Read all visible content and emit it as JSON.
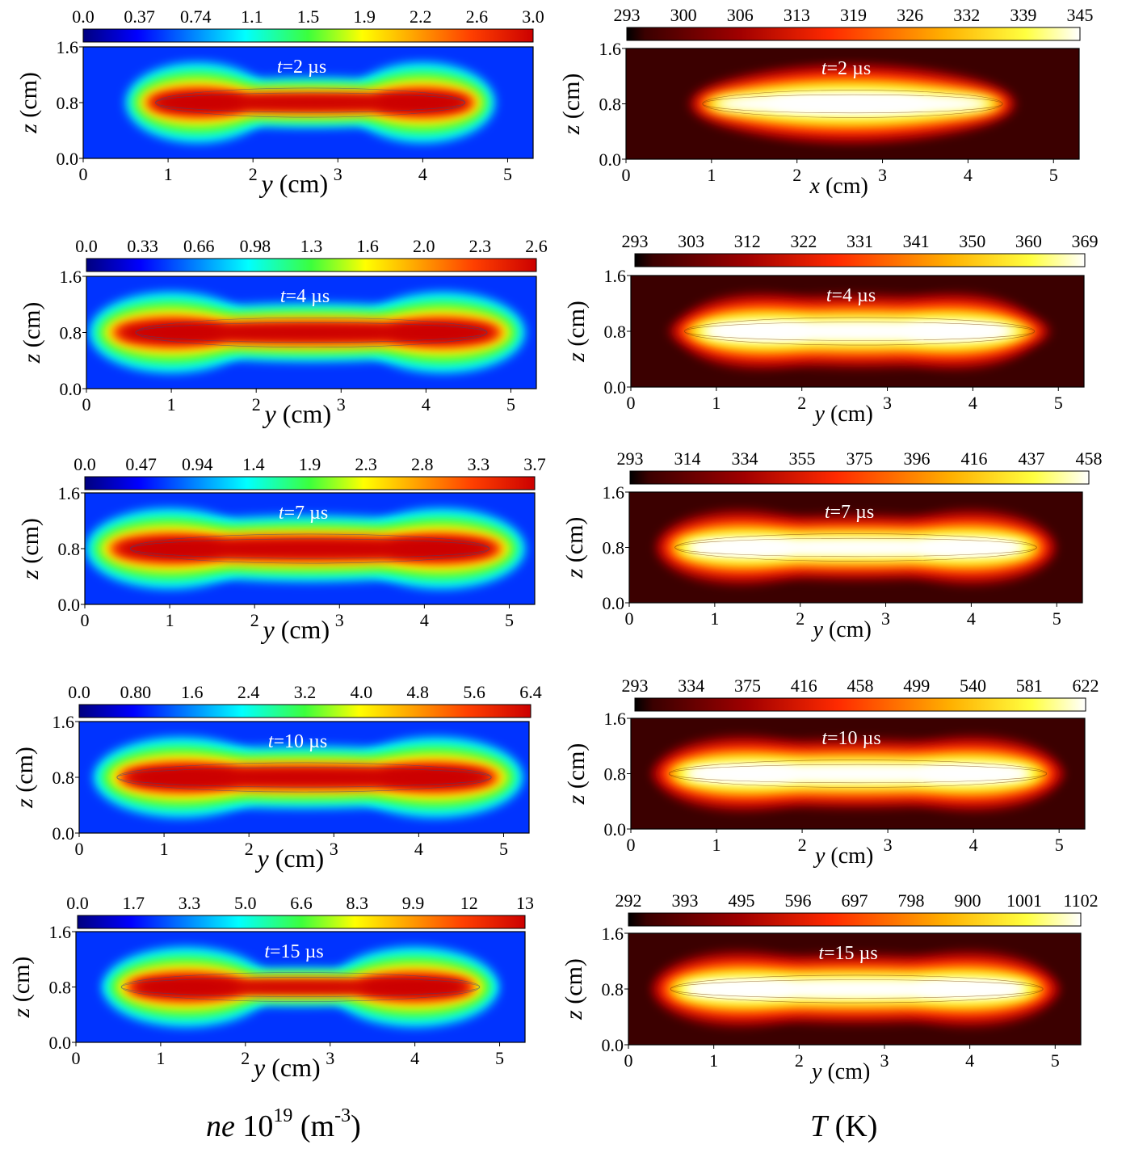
{
  "captions": {
    "left": {
      "var": "ne",
      "scale": " 10",
      "exp": "19",
      "unit_open": " (m",
      "unit_exp": "-3",
      "unit_close": ")"
    },
    "right": {
      "var": "T",
      "unit": " (K)"
    }
  },
  "chart_data": [
    {
      "type": "heatmap",
      "panel": "ne-t2",
      "quantity": "ne",
      "colormap": "jet",
      "time_label": "t=2 µs",
      "ylabel": "z (cm)",
      "xlabel": "y (cm)",
      "colorbar_ticks": [
        "0.0",
        "0.37",
        "0.74",
        "1.1",
        "1.5",
        "1.9",
        "2.2",
        "2.6",
        "3.0"
      ],
      "crange": [
        0,
        3.0
      ],
      "xlim": [
        0,
        5.3
      ],
      "ylim": [
        0,
        1.6
      ],
      "xticks": [
        "0",
        "1",
        "2",
        "3",
        "4",
        "5"
      ],
      "yticks": [
        "0.0",
        "0.8",
        "1.6"
      ],
      "center_z": 0.8,
      "peak": 3.0,
      "lobes": [
        {
          "y": 1.35,
          "amplitude": 1.0
        },
        {
          "y": 4.0,
          "amplitude": 1.0
        }
      ],
      "extent_y": [
        0.65,
        4.7
      ],
      "mid_value_fraction": 0.6
    },
    {
      "type": "heatmap",
      "panel": "ne-t4",
      "quantity": "ne",
      "colormap": "jet",
      "time_label": "t=4 µs",
      "ylabel": "z (cm)",
      "xlabel": "y (cm)",
      "colorbar_ticks": [
        "0.0",
        "0.33",
        "0.66",
        "0.98",
        "1.3",
        "1.6",
        "2.0",
        "2.3",
        "2.6"
      ],
      "crange": [
        0,
        2.6
      ],
      "xlim": [
        0,
        5.3
      ],
      "ylim": [
        0,
        1.6
      ],
      "xticks": [
        "0",
        "1",
        "2",
        "3",
        "4",
        "5"
      ],
      "yticks": [
        "0.0",
        "0.8",
        "1.6"
      ],
      "center_z": 0.8,
      "peak": 2.6,
      "lobes": [
        {
          "y": 1.0,
          "amplitude": 1.0
        },
        {
          "y": 4.2,
          "amplitude": 1.0
        }
      ],
      "extent_y": [
        0.35,
        4.95
      ],
      "mid_value_fraction": 0.7
    },
    {
      "type": "heatmap",
      "panel": "ne-t7",
      "quantity": "ne",
      "colormap": "jet",
      "time_label": "t=7 µs",
      "ylabel": "z (cm)",
      "xlabel": "y (cm)",
      "colorbar_ticks": [
        "0.0",
        "0.47",
        "0.94",
        "1.4",
        "1.9",
        "2.3",
        "2.8",
        "3.3",
        "3.7"
      ],
      "crange": [
        0,
        3.7
      ],
      "xlim": [
        0,
        5.3
      ],
      "ylim": [
        0,
        1.6
      ],
      "xticks": [
        "0",
        "1",
        "2",
        "3",
        "4",
        "5"
      ],
      "yticks": [
        "0.0",
        "0.8",
        "1.6"
      ],
      "center_z": 0.8,
      "peak": 3.7,
      "lobes": [
        {
          "y": 1.0,
          "amplitude": 1.0
        },
        {
          "y": 4.2,
          "amplitude": 1.0
        }
      ],
      "extent_y": [
        0.3,
        5.0
      ],
      "mid_value_fraction": 0.8
    },
    {
      "type": "heatmap",
      "panel": "ne-t10",
      "quantity": "ne",
      "colormap": "jet",
      "time_label": "t=10 µs",
      "ylabel": "z (cm)",
      "xlabel": "y (cm)",
      "colorbar_ticks": [
        "0.0",
        "0.80",
        "1.6",
        "2.4",
        "3.2",
        "4.0",
        "4.8",
        "5.6",
        "6.4"
      ],
      "crange": [
        0,
        6.4
      ],
      "xlim": [
        0,
        5.3
      ],
      "ylim": [
        0,
        1.6
      ],
      "xticks": [
        "0",
        "1",
        "2",
        "3",
        "4",
        "5"
      ],
      "yticks": [
        "0.0",
        "0.8",
        "1.6"
      ],
      "center_z": 0.8,
      "peak": 6.4,
      "lobes": [
        {
          "y": 1.2,
          "amplitude": 1.0
        },
        {
          "y": 4.2,
          "amplitude": 1.0
        }
      ],
      "extent_y": [
        0.2,
        5.1
      ],
      "mid_value_fraction": 0.75
    },
    {
      "type": "heatmap",
      "panel": "ne-t15",
      "quantity": "ne",
      "colormap": "jet",
      "time_label": "t=15 µs",
      "ylabel": "z (cm)",
      "xlabel": "y (cm)",
      "colorbar_ticks": [
        "0.0",
        "1.7",
        "3.3",
        "5.0",
        "6.6",
        "8.3",
        "9.9",
        "12",
        "13"
      ],
      "crange": [
        0,
        13
      ],
      "xlim": [
        0,
        5.3
      ],
      "ylim": [
        0,
        1.6
      ],
      "xticks": [
        "0",
        "1",
        "2",
        "3",
        "4",
        "5"
      ],
      "yticks": [
        "0.0",
        "0.8",
        "1.6"
      ],
      "center_z": 0.8,
      "peak": 13,
      "lobes": [
        {
          "y": 1.3,
          "amplitude": 1.0
        },
        {
          "y": 4.0,
          "amplitude": 1.0
        }
      ],
      "extent_y": [
        0.3,
        5.0
      ],
      "mid_value_fraction": 0.45
    },
    {
      "type": "heatmap",
      "panel": "T-t2",
      "quantity": "T",
      "colormap": "hot",
      "time_label": "t=2 µs",
      "ylabel": "z (cm)",
      "xlabel": "x (cm)",
      "colorbar_ticks": [
        "293",
        "300",
        "306",
        "313",
        "319",
        "326",
        "332",
        "339",
        "345"
      ],
      "crange": [
        293,
        345
      ],
      "xlim": [
        0,
        5.3
      ],
      "ylim": [
        0,
        1.6
      ],
      "xticks": [
        "0",
        "1",
        "2",
        "3",
        "4",
        "5"
      ],
      "yticks": [
        "0.0",
        "0.8",
        "1.6"
      ],
      "center_z": 0.8,
      "peak": 345,
      "lobes": [
        {
          "y": 2.6,
          "amplitude": 1.0
        }
      ],
      "extent_y": [
        0.7,
        4.6
      ],
      "mid_value_fraction": 1.0
    },
    {
      "type": "heatmap",
      "panel": "T-t4",
      "quantity": "T",
      "colormap": "hot",
      "time_label": "t=4 µs",
      "ylabel": "z (cm)",
      "xlabel": "y (cm)",
      "colorbar_ticks": [
        "293",
        "303",
        "312",
        "322",
        "331",
        "341",
        "350",
        "360",
        "369"
      ],
      "crange": [
        293,
        369
      ],
      "xlim": [
        0,
        5.3
      ],
      "ylim": [
        0,
        1.6
      ],
      "xticks": [
        "0",
        "1",
        "2",
        "3",
        "4",
        "5"
      ],
      "yticks": [
        "0.0",
        "0.8",
        "1.6"
      ],
      "center_z": 0.8,
      "peak": 369,
      "lobes": [
        {
          "y": 1.5,
          "amplitude": 1.0
        },
        {
          "y": 3.8,
          "amplitude": 1.0
        }
      ],
      "extent_y": [
        0.4,
        4.95
      ],
      "mid_value_fraction": 0.95
    },
    {
      "type": "heatmap",
      "panel": "T-t7",
      "quantity": "T",
      "colormap": "hot",
      "time_label": "t=7 µs",
      "ylabel": "z (cm)",
      "xlabel": "y (cm)",
      "colorbar_ticks": [
        "293",
        "314",
        "334",
        "355",
        "375",
        "396",
        "416",
        "437",
        "458"
      ],
      "crange": [
        293,
        458
      ],
      "xlim": [
        0,
        5.3
      ],
      "ylim": [
        0,
        1.6
      ],
      "xticks": [
        "0",
        "1",
        "2",
        "3",
        "4",
        "5"
      ],
      "yticks": [
        "0.0",
        "0.8",
        "1.6"
      ],
      "center_z": 0.8,
      "peak": 458,
      "lobes": [
        {
          "y": 1.3,
          "amplitude": 1.0
        },
        {
          "y": 4.0,
          "amplitude": 1.0
        }
      ],
      "extent_y": [
        0.3,
        5.0
      ],
      "mid_value_fraction": 0.85
    },
    {
      "type": "heatmap",
      "panel": "T-t10",
      "quantity": "T",
      "colormap": "hot",
      "time_label": "t=10 µs",
      "ylabel": "z (cm)",
      "xlabel": "y (cm)",
      "colorbar_ticks": [
        "293",
        "334",
        "375",
        "416",
        "458",
        "499",
        "540",
        "581",
        "622"
      ],
      "crange": [
        293,
        622
      ],
      "xlim": [
        0,
        5.3
      ],
      "ylim": [
        0,
        1.6
      ],
      "xticks": [
        "0",
        "1",
        "2",
        "3",
        "4",
        "5"
      ],
      "yticks": [
        "0.0",
        "0.8",
        "1.6"
      ],
      "center_z": 0.8,
      "peak": 622,
      "lobes": [
        {
          "y": 1.3,
          "amplitude": 1.0
        },
        {
          "y": 4.0,
          "amplitude": 1.0
        }
      ],
      "extent_y": [
        0.2,
        5.1
      ],
      "mid_value_fraction": 0.9
    },
    {
      "type": "heatmap",
      "panel": "T-t15",
      "quantity": "T",
      "colormap": "hot",
      "time_label": "t=15 µs",
      "ylabel": "z (cm)",
      "xlabel": "y (cm)",
      "colorbar_ticks": [
        "292",
        "393",
        "495",
        "596",
        "697",
        "798",
        "900",
        "1001",
        "1102"
      ],
      "crange": [
        292,
        1102
      ],
      "xlim": [
        0,
        5.3
      ],
      "ylim": [
        0,
        1.6
      ],
      "xticks": [
        "0",
        "1",
        "2",
        "3",
        "4",
        "5"
      ],
      "yticks": [
        "0.0",
        "0.8",
        "1.6"
      ],
      "center_z": 0.8,
      "peak": 1102,
      "lobes": [
        {
          "y": 1.3,
          "amplitude": 1.0
        },
        {
          "y": 4.0,
          "amplitude": 1.0
        }
      ],
      "extent_y": [
        0.25,
        5.1
      ],
      "mid_value_fraction": 0.9
    }
  ]
}
